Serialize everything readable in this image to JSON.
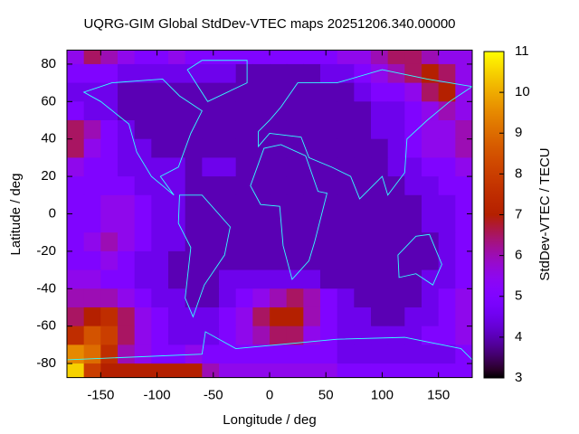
{
  "chart_data": {
    "type": "heatmap",
    "title": "UQRG-GIM Global StdDev-VTEC maps 20251206.340.00000",
    "x_label": "Longitude / deg",
    "y_label": "Latitude / deg",
    "colorbar_label": "StdDev-VTEC / TECU",
    "xlim": [
      -180,
      180
    ],
    "ylim": [
      -87.5,
      87.5
    ],
    "xticks": [
      -150,
      -100,
      -50,
      0,
      50,
      100,
      150
    ],
    "yticks": [
      -80,
      -60,
      -40,
      -20,
      0,
      20,
      40,
      60,
      80
    ],
    "clim": [
      3,
      11
    ],
    "cticks": [
      3,
      4,
      5,
      6,
      7,
      8,
      9,
      10,
      11
    ],
    "lons": [
      -172.5,
      -157.5,
      -142.5,
      -127.5,
      -112.5,
      -97.5,
      -82.5,
      -67.5,
      -52.5,
      -37.5,
      -22.5,
      -7.5,
      7.5,
      22.5,
      37.5,
      52.5,
      67.5,
      82.5,
      97.5,
      112.5,
      127.5,
      142.5,
      157.5,
      172.5
    ],
    "lats": [
      85,
      75,
      65,
      55,
      45,
      35,
      25,
      15,
      5,
      -5,
      -15,
      -25,
      -35,
      -45,
      -55,
      -65,
      -75,
      -85
    ],
    "values": [
      [
        5.5,
        6.5,
        6,
        5.5,
        5,
        5,
        5.5,
        5,
        5,
        5,
        5,
        5,
        5,
        5,
        5,
        5,
        5.5,
        5.5,
        6,
        6.5,
        6.5,
        6,
        5.5,
        5.5
      ],
      [
        5,
        5,
        5,
        4.5,
        4.5,
        4.5,
        4.5,
        4.5,
        4.5,
        4.5,
        4,
        4,
        4,
        4,
        4,
        4.5,
        4.5,
        5,
        5.5,
        6,
        6.5,
        7,
        6.5,
        5.5
      ],
      [
        4.5,
        4.5,
        4.5,
        4,
        4,
        4,
        4,
        4,
        4,
        4,
        4,
        4,
        4,
        4,
        4,
        4,
        4,
        4.5,
        5,
        5,
        5.5,
        6.5,
        7,
        5.5
      ],
      [
        5,
        4.5,
        4.5,
        4,
        4,
        4,
        4,
        4,
        4,
        4,
        4,
        4,
        4,
        4,
        4,
        4,
        4,
        4,
        4.5,
        4.5,
        5,
        5.5,
        6,
        5.5
      ],
      [
        6.5,
        6,
        5,
        4.5,
        4,
        4,
        4,
        4,
        4,
        4,
        4,
        4,
        4,
        4,
        4,
        4,
        4,
        4,
        4.5,
        4.5,
        5,
        5.5,
        5.5,
        6
      ],
      [
        6.5,
        5.5,
        5,
        4.5,
        4.5,
        4,
        4,
        4,
        4,
        4,
        4,
        4,
        4,
        4,
        4,
        4,
        4,
        4,
        4,
        4.5,
        5,
        5.5,
        5.5,
        6
      ],
      [
        5.5,
        5,
        5,
        4.5,
        4.5,
        4.5,
        4.5,
        4,
        4.5,
        4.5,
        4,
        4,
        4,
        4,
        4,
        4,
        4,
        4,
        4,
        4.5,
        4.5,
        5,
        5,
        5.5
      ],
      [
        5,
        5,
        5,
        5,
        4.5,
        4.5,
        4.5,
        4,
        4,
        4,
        4,
        4,
        4,
        4,
        4,
        4,
        4,
        4,
        4,
        4,
        4.5,
        4.5,
        5,
        5
      ],
      [
        5,
        5,
        5.5,
        5.5,
        5,
        4.5,
        4.5,
        4,
        4,
        4,
        4,
        4,
        4,
        4,
        4,
        4,
        4,
        4,
        4,
        4,
        4,
        4.5,
        4.5,
        5
      ],
      [
        5,
        5,
        5.5,
        5.5,
        5,
        4.5,
        4.5,
        4,
        4,
        4,
        4,
        4,
        4,
        4,
        4,
        4,
        4,
        4,
        4,
        4,
        4,
        4.5,
        4.5,
        5
      ],
      [
        5,
        5.5,
        6,
        5.5,
        5,
        4.5,
        4.5,
        4,
        4,
        4,
        4,
        4,
        4,
        4,
        4,
        4,
        4,
        4,
        4,
        4,
        4,
        4,
        4.5,
        5
      ],
      [
        5,
        5,
        5.5,
        5,
        4.5,
        4.5,
        4,
        4,
        4,
        4,
        4,
        4,
        4,
        4,
        4,
        4,
        4,
        4,
        4,
        4,
        4,
        4,
        4.5,
        5
      ],
      [
        5.5,
        5.5,
        5,
        5,
        4.5,
        4.5,
        4,
        4,
        4,
        4.5,
        4.5,
        4.5,
        4.5,
        4.5,
        4.5,
        4,
        4,
        4,
        4,
        4,
        4,
        4.5,
        4.5,
        5
      ],
      [
        6,
        6,
        6,
        5.5,
        5,
        4.5,
        4.5,
        4,
        4,
        4.5,
        5,
        5.5,
        6,
        6.5,
        6,
        5,
        4.5,
        4,
        4,
        4,
        4,
        4.5,
        5,
        5.5
      ],
      [
        6.5,
        7,
        7.5,
        6.5,
        5.5,
        5,
        4.5,
        4.5,
        4.5,
        5,
        5.5,
        6.5,
        7,
        7,
        6,
        5,
        4.5,
        4.5,
        4,
        4,
        4.5,
        4.5,
        5,
        5.5
      ],
      [
        7.5,
        8.5,
        8,
        6.5,
        5.5,
        5,
        4.5,
        4.5,
        4.5,
        5,
        5.5,
        6,
        6.5,
        6.5,
        5.5,
        5,
        4.5,
        4.5,
        4.5,
        4.5,
        4.5,
        5,
        5,
        5.5
      ],
      [
        9.5,
        9,
        7.5,
        6,
        5.5,
        5,
        5,
        5.5,
        5,
        5,
        5,
        5,
        5,
        5,
        5,
        5,
        4.5,
        4.5,
        4.5,
        4.5,
        4.5,
        4.5,
        4.5,
        5
      ],
      [
        10.5,
        8,
        7,
        7,
        7,
        7,
        7,
        7,
        6,
        5.5,
        5.5,
        5.5,
        5.5,
        5.5,
        5.5,
        5.5,
        5,
        5,
        5,
        5,
        5,
        5,
        5,
        5
      ]
    ]
  }
}
